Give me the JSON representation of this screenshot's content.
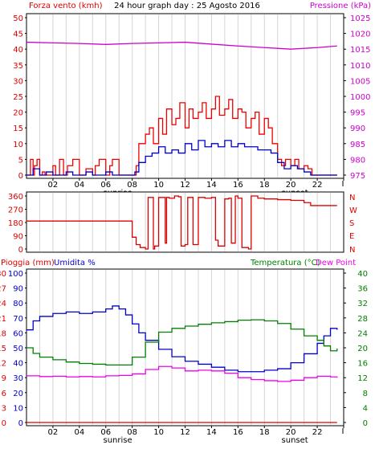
{
  "header": {
    "title": "24 hour graph day : 25 Agosto 2016"
  },
  "chart_data": [
    {
      "id": "wind-pressure",
      "type": "line",
      "title": "24 hour graph day : 25 Agosto 2016",
      "x_ticks": [
        "02",
        "04",
        "06",
        "08",
        "10",
        "12",
        "14",
        "16",
        "18",
        "20",
        "22",
        ""
      ],
      "x_markers": [
        {
          "label": "sunrise",
          "x": 6.9
        },
        {
          "label": "sunset",
          "x": 20.3
        }
      ],
      "left_axis": {
        "label": "Forza vento (kmh)",
        "min": 0,
        "max": 50,
        "ticks": [
          0,
          5,
          10,
          15,
          20,
          25,
          30,
          35,
          40,
          45,
          50
        ],
        "color": "#dd0000"
      },
      "right_axis": {
        "label": "Pressione (kPa)",
        "min": 975,
        "max": 1025,
        "ticks": [
          975,
          980,
          985,
          990,
          995,
          1000,
          1005,
          1010,
          1015,
          1020,
          1025
        ],
        "color": "#cc00cc"
      },
      "series": [
        {
          "axis": "left",
          "color": "#ee0000",
          "x": [
            0,
            0.3,
            0.5,
            0.6,
            0.8,
            1.0,
            1.2,
            1.4,
            2.0,
            2.2,
            2.5,
            2.8,
            3.1,
            3.5,
            4.0,
            4.5,
            5.0,
            5.2,
            5.5,
            6.0,
            6.3,
            6.5,
            7.0,
            7.4,
            7.6,
            7.8,
            8.0,
            8.3,
            8.5,
            9.0,
            9.3,
            9.6,
            10.0,
            10.3,
            10.6,
            11.0,
            11.3,
            11.6,
            12.0,
            12.3,
            12.6,
            13.0,
            13.3,
            13.6,
            14.0,
            14.3,
            14.6,
            15.0,
            15.3,
            15.6,
            16.0,
            16.3,
            16.6,
            17.0,
            17.3,
            17.6,
            18.0,
            18.3,
            18.6,
            19.0,
            19.3,
            19.6,
            20.0,
            20.3,
            20.6,
            21.0,
            21.3,
            21.6,
            22.0,
            22.5,
            23.0,
            23.5
          ],
          "y": [
            0,
            5,
            0,
            3,
            5,
            0,
            1,
            0,
            3,
            0,
            5,
            0,
            3,
            5,
            0,
            2,
            0,
            3,
            5,
            0,
            3,
            5,
            0,
            0,
            0,
            0,
            0,
            3,
            10,
            13,
            15,
            10,
            18,
            13,
            21,
            16,
            18,
            23,
            15,
            21,
            18,
            20,
            23,
            18,
            21,
            25,
            19,
            21,
            24,
            18,
            21,
            20,
            15,
            18,
            20,
            13,
            18,
            15,
            10,
            5,
            3,
            5,
            3,
            5,
            2,
            3,
            2,
            0,
            0,
            0,
            0,
            0
          ]
        },
        {
          "axis": "left",
          "color": "#0000cc",
          "x": [
            0,
            0.5,
            1.0,
            1.5,
            2.0,
            2.5,
            3.0,
            3.5,
            4.0,
            4.5,
            5.0,
            5.5,
            6.0,
            6.5,
            7.0,
            7.5,
            8.0,
            8.2,
            8.5,
            9.0,
            9.5,
            10.0,
            10.5,
            11.0,
            11.5,
            12.0,
            12.5,
            13.0,
            13.5,
            14.0,
            14.5,
            15.0,
            15.5,
            16.0,
            16.5,
            17.0,
            17.5,
            18.0,
            18.5,
            19.0,
            19.5,
            20.0,
            20.5,
            21.0,
            21.5,
            22.0,
            22.5,
            23.0,
            23.5
          ],
          "y": [
            0,
            2,
            0,
            1,
            0,
            0,
            1,
            0,
            0,
            1,
            0,
            0,
            1,
            0,
            0,
            0,
            0,
            1,
            4,
            6,
            7,
            9,
            7,
            8,
            7,
            10,
            8,
            11,
            9,
            10,
            9,
            11,
            9,
            10,
            9,
            9,
            8,
            8,
            7,
            4,
            2,
            3,
            2,
            1,
            0,
            0,
            0,
            0,
            0
          ]
        },
        {
          "axis": "right",
          "color": "#cc00cc",
          "x": [
            0,
            2,
            4,
            6,
            8,
            10,
            12,
            14,
            16,
            18,
            20,
            22,
            23.5
          ],
          "y": [
            1017.2,
            1017.0,
            1016.8,
            1016.5,
            1016.8,
            1017.0,
            1017.2,
            1016.6,
            1016.0,
            1015.5,
            1015.0,
            1015.5,
            1016.0
          ]
        }
      ]
    },
    {
      "id": "wind-direction",
      "type": "line",
      "left_axis": {
        "min": 0,
        "max": 360,
        "ticks": [
          0,
          90,
          180,
          270,
          360
        ],
        "color": "#dd0000"
      },
      "right_labels": [
        "N",
        "E",
        "S",
        "W",
        "N"
      ],
      "series": [
        {
          "color": "#dd0000",
          "x": [
            0,
            7.8,
            8.0,
            8.3,
            8.6,
            9.0,
            9.2,
            9.4,
            9.6,
            9.7,
            10.0,
            10.3,
            10.5,
            10.6,
            10.8,
            11.2,
            11.5,
            11.7,
            12.0,
            12.2,
            12.4,
            12.6,
            13.0,
            13.5,
            14.0,
            14.3,
            14.5,
            15.0,
            15.3,
            15.5,
            15.8,
            16.0,
            16.3,
            16.5,
            16.8,
            17.0,
            17.5,
            18.0,
            18.5,
            19.0,
            20.0,
            21.0,
            21.5,
            23.5
          ],
          "y": [
            190,
            190,
            80,
            30,
            10,
            0,
            350,
            350,
            0,
            20,
            350,
            350,
            40,
            350,
            345,
            360,
            355,
            20,
            30,
            350,
            350,
            30,
            350,
            345,
            350,
            60,
            20,
            340,
            345,
            40,
            360,
            345,
            10,
            10,
            0,
            360,
            345,
            340,
            340,
            335,
            330,
            315,
            295,
            295
          ]
        }
      ]
    },
    {
      "id": "rain-humidity-temp",
      "type": "line",
      "x_ticks": [
        "02",
        "04",
        "06",
        "08",
        "10",
        "12",
        "14",
        "16",
        "18",
        "20",
        "22",
        ""
      ],
      "x_markers": [
        {
          "label": "sunrise",
          "x": 6.9
        },
        {
          "label": "sunset",
          "x": 20.3
        }
      ],
      "labels": {
        "rain": "Pioggia (mm)",
        "humidity": "Umidita %",
        "temperature": "Temperatura (°C)",
        "dewpoint": "Dew Point"
      },
      "rain_axis": {
        "ticks": [
          0,
          3,
          6,
          9,
          12,
          15,
          18,
          21,
          24,
          27,
          30
        ],
        "color": "#dd0000"
      },
      "humidity_axis": {
        "ticks": [
          0,
          10,
          20,
          30,
          40,
          50,
          60,
          70,
          80,
          90,
          100
        ],
        "color": "#0000cc"
      },
      "temperature_axis": {
        "ticks": [
          0,
          4,
          8,
          12,
          16,
          20,
          24,
          28,
          32,
          36,
          40
        ],
        "color": "#008000"
      },
      "series": [
        {
          "name": "Pioggia (mm)",
          "axis": "rain",
          "color": "#dd0000",
          "x": [
            0,
            23.5
          ],
          "y": [
            0,
            0
          ]
        },
        {
          "name": "Umidita %",
          "axis": "humidity",
          "color": "#0000cc",
          "x": [
            0,
            0.5,
            1,
            2,
            3,
            4,
            5,
            6,
            6.5,
            7,
            7.5,
            8,
            8.5,
            9,
            10,
            11,
            12,
            13,
            14,
            15,
            16,
            17,
            18,
            19,
            20,
            21,
            22,
            22.5,
            23,
            23.5
          ],
          "y": [
            62,
            68,
            71,
            73,
            74,
            73,
            74,
            76,
            78,
            76,
            72,
            66,
            60,
            55,
            49,
            44,
            41,
            39,
            37,
            35,
            34,
            34,
            35,
            36,
            40,
            46,
            53,
            58,
            63,
            62
          ]
        },
        {
          "name": "Temperatura (°C)",
          "axis": "temperature",
          "color": "#008000",
          "x": [
            0,
            0.5,
            1,
            2,
            3,
            4,
            5,
            6,
            7,
            8,
            9,
            10,
            11,
            12,
            13,
            14,
            15,
            16,
            17,
            18,
            19,
            20,
            21,
            22,
            22.5,
            23,
            23.5
          ],
          "y": [
            20,
            18.5,
            17.5,
            16.8,
            16.2,
            15.8,
            15.6,
            15.4,
            15.4,
            17.5,
            21.5,
            24.2,
            25.2,
            25.8,
            26.3,
            26.7,
            27.0,
            27.4,
            27.5,
            27.2,
            26.5,
            25.0,
            23.2,
            22.0,
            20.5,
            19.2,
            19.8
          ]
        },
        {
          "name": "Dew Point",
          "axis": "temperature",
          "color": "#ee00ee",
          "x": [
            0,
            1,
            2,
            3,
            4,
            5,
            6,
            7,
            8,
            9,
            10,
            11,
            12,
            13,
            14,
            15,
            16,
            17,
            18,
            19,
            20,
            21,
            22,
            23,
            23.5
          ],
          "y": [
            12.5,
            12.3,
            12.4,
            12.2,
            12.3,
            12.2,
            12.5,
            12.6,
            13.0,
            14.2,
            15.0,
            14.6,
            13.8,
            14.0,
            13.8,
            13.2,
            12.0,
            11.5,
            11.2,
            11.0,
            11.3,
            12.0,
            12.4,
            12.2,
            12.0
          ]
        }
      ]
    }
  ]
}
